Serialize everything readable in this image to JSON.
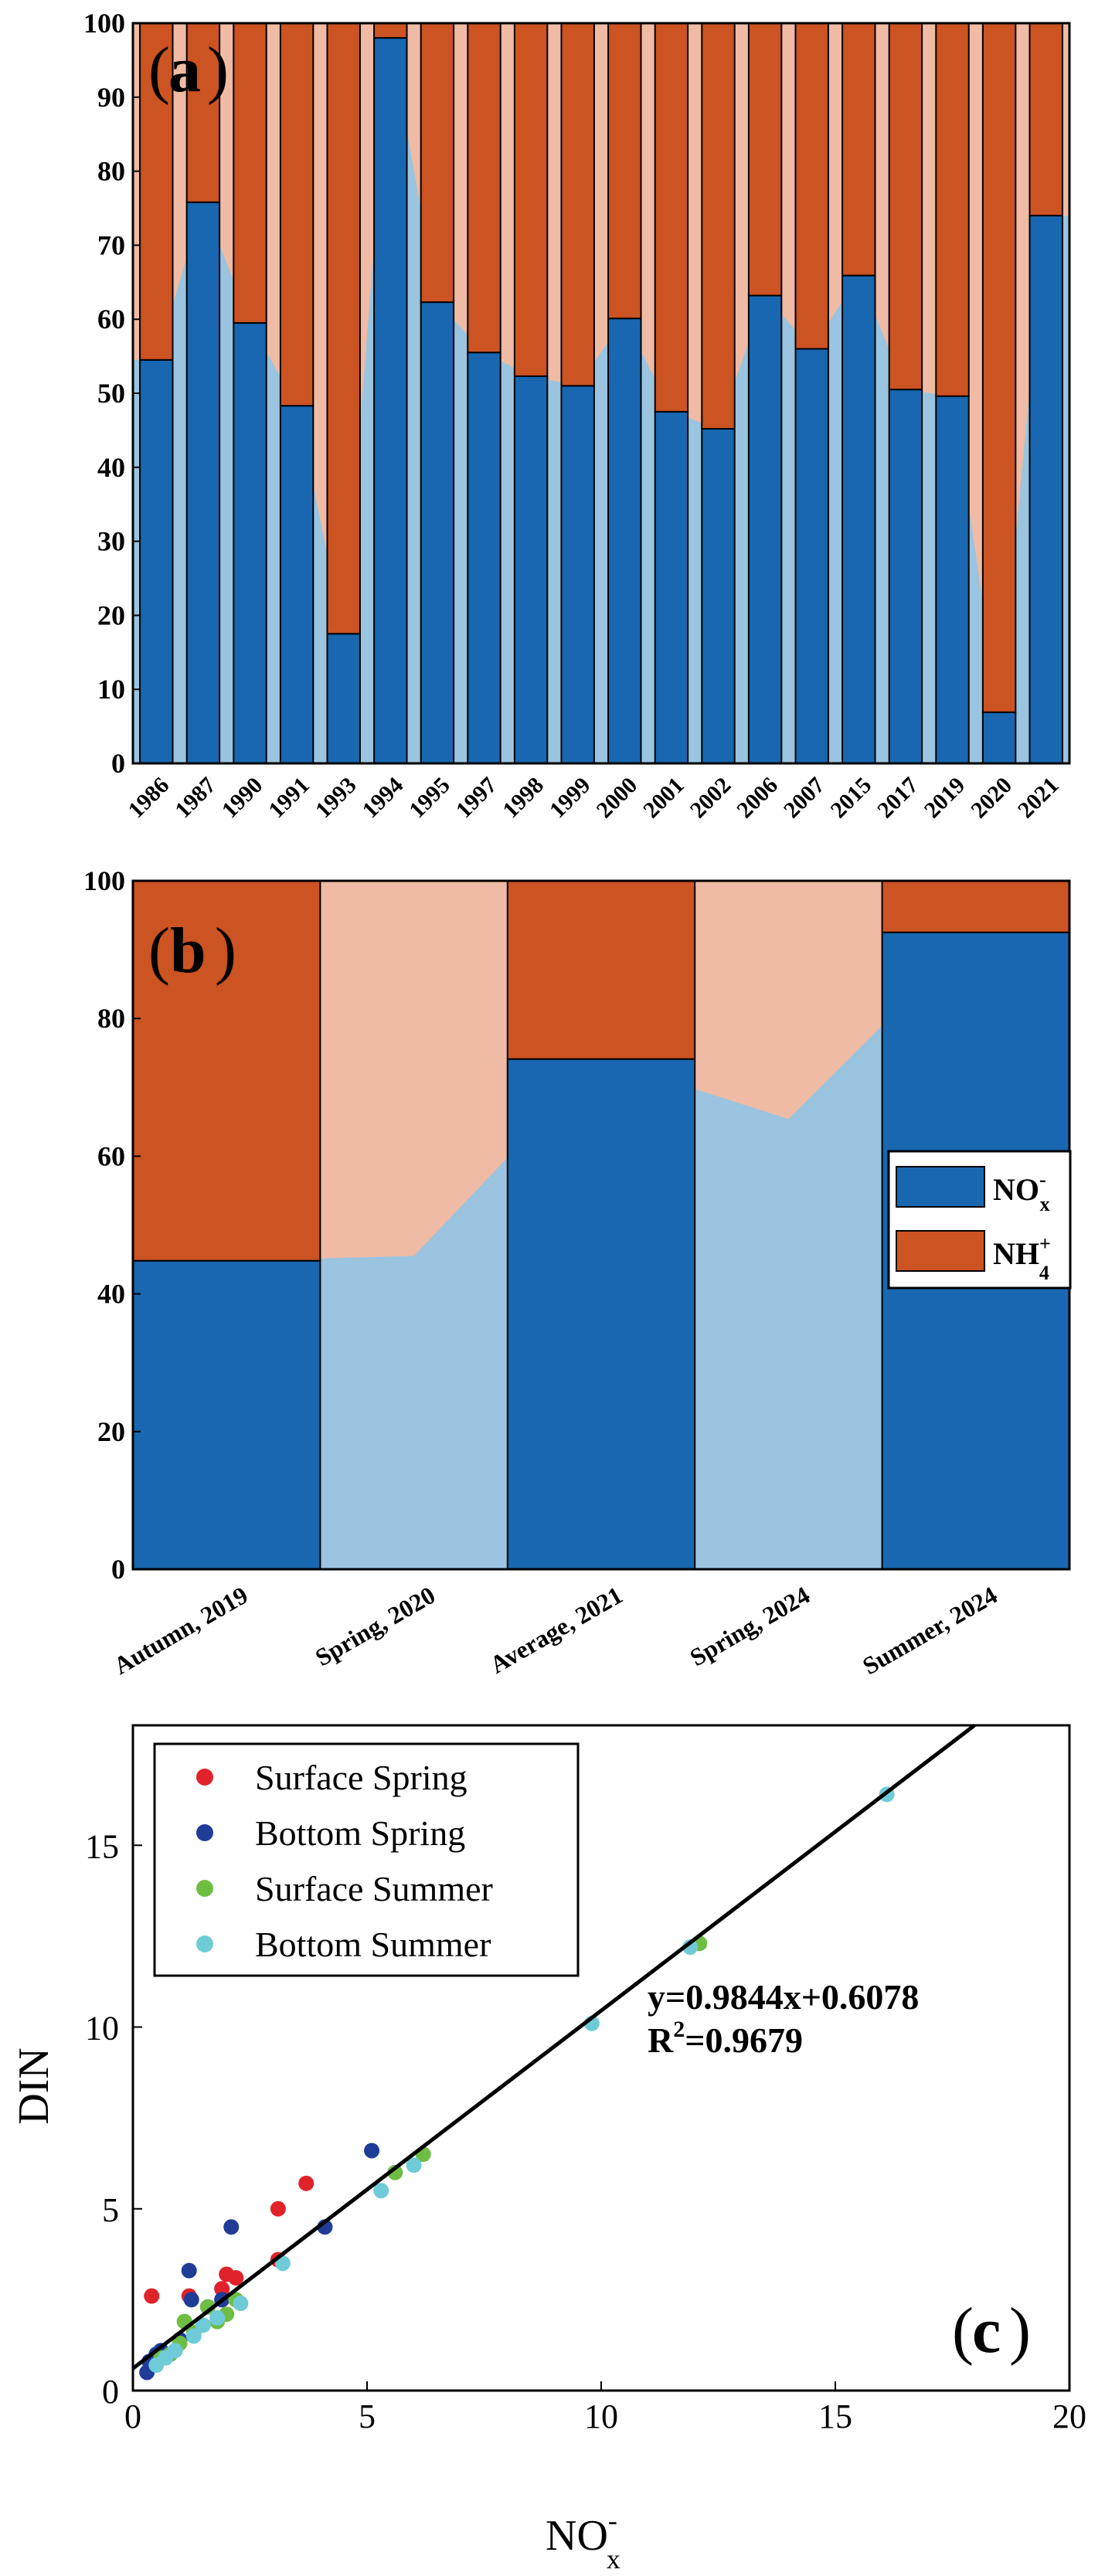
{
  "colors": {
    "nox_dark": "#1867b0",
    "nox_light": "#9ac4e0",
    "nh4_dark": "#cc5322",
    "nh4_light": "#efbba4",
    "surface_spring": "#e0222a",
    "bottom_spring": "#1f3c97",
    "surface_summer": "#6fbe44",
    "bottom_summer": "#6fcbd8",
    "fit_line": "#000000"
  },
  "chart_data": [
    {
      "panel": "a",
      "type": "bar",
      "stacked": true,
      "panel_label": "a",
      "categories": [
        "1986",
        "1987",
        "1990",
        "1991",
        "1993",
        "1994",
        "1995",
        "1997",
        "1998",
        "1999",
        "2000",
        "2001",
        "2002",
        "2006",
        "2007",
        "2015",
        "2017",
        "2019",
        "2020",
        "2021"
      ],
      "series": [
        {
          "name": "NOx-",
          "values": [
            54.5,
            75.8,
            59.5,
            48.3,
            17.5,
            98.0,
            62.3,
            55.5,
            52.3,
            51.0,
            60.1,
            47.5,
            45.2,
            63.2,
            56.0,
            65.9,
            50.5,
            49.6,
            6.9,
            74.0
          ]
        },
        {
          "name": "NH4+",
          "values": [
            45.5,
            24.2,
            40.5,
            51.7,
            82.5,
            2.0,
            37.7,
            44.5,
            47.7,
            49.0,
            39.9,
            52.5,
            54.8,
            36.8,
            44.0,
            34.1,
            49.5,
            50.4,
            93.1,
            26.0
          ]
        }
      ],
      "yticks": [
        "0",
        "10",
        "20",
        "30",
        "40",
        "50",
        "60",
        "70",
        "80",
        "90",
        "100"
      ],
      "ylim": [
        0,
        100
      ]
    },
    {
      "panel": "b",
      "type": "bar",
      "stacked": true,
      "panel_label": "b",
      "categories": [
        "Autumn, 2019",
        "Spring, 2020",
        "Average, 2021",
        "Spring, 2024",
        "Summer, 2024"
      ],
      "series": [
        {
          "name": "NOx-",
          "values": [
            44.8,
            45.5,
            74.1,
            65.4,
            92.5
          ]
        },
        {
          "name": "NH4+",
          "values": [
            55.2,
            54.5,
            25.9,
            34.6,
            7.5
          ]
        }
      ],
      "legend": [
        {
          "base": "NO",
          "sup": "-",
          "sub": "x"
        },
        {
          "base": "NH",
          "sup": "+",
          "sub": "4"
        }
      ],
      "yticks": [
        "0",
        "20",
        "40",
        "60",
        "80",
        "100"
      ],
      "ylim": [
        0,
        100
      ]
    },
    {
      "panel": "c",
      "type": "scatter",
      "panel_label": "c",
      "xlabel": {
        "base": "NO",
        "sup": "-",
        "sub": "x"
      },
      "ylabel": "DIN",
      "xlim": [
        0,
        20
      ],
      "ylim": [
        0,
        18.3
      ],
      "xticks": [
        "0",
        "5",
        "10",
        "15",
        "20"
      ],
      "yticks": [
        "0",
        "5",
        "10",
        "15"
      ],
      "fit": {
        "slope": 0.9844,
        "intercept": 0.6078
      },
      "equation": "y=0.9844x+0.6078",
      "r2_base": "R",
      "r2_sup": "2",
      "r2_value": "=0.9679",
      "series": [
        {
          "name": "Surface Spring",
          "points": [
            [
              0.4,
              2.6
            ],
            [
              1.2,
              2.6
            ],
            [
              1.9,
              2.8
            ],
            [
              2.0,
              3.2
            ],
            [
              2.2,
              3.1
            ],
            [
              3.1,
              3.6
            ],
            [
              3.1,
              5.0
            ],
            [
              3.7,
              5.7
            ]
          ]
        },
        {
          "name": "Bottom Spring",
          "points": [
            [
              0.3,
              0.5
            ],
            [
              0.35,
              0.8
            ],
            [
              0.5,
              1.0
            ],
            [
              0.6,
              1.1
            ],
            [
              1.0,
              1.4
            ],
            [
              1.2,
              3.3
            ],
            [
              1.25,
              2.5
            ],
            [
              1.6,
              2.3
            ],
            [
              1.9,
              2.5
            ],
            [
              2.1,
              4.5
            ],
            [
              4.1,
              4.5
            ],
            [
              5.1,
              6.6
            ]
          ]
        },
        {
          "name": "Surface Summer",
          "points": [
            [
              0.6,
              0.9
            ],
            [
              0.8,
              1.0
            ],
            [
              1.0,
              1.3
            ],
            [
              1.1,
              1.9
            ],
            [
              1.3,
              1.6
            ],
            [
              1.6,
              2.3
            ],
            [
              1.8,
              1.9
            ],
            [
              2.0,
              2.1
            ],
            [
              2.2,
              2.5
            ],
            [
              5.6,
              6.0
            ],
            [
              6.2,
              6.5
            ],
            [
              12.1,
              12.3
            ]
          ]
        },
        {
          "name": "Bottom Summer",
          "points": [
            [
              0.5,
              0.7
            ],
            [
              0.7,
              0.9
            ],
            [
              0.9,
              1.1
            ],
            [
              1.3,
              1.5
            ],
            [
              1.5,
              1.8
            ],
            [
              1.8,
              2.0
            ],
            [
              2.3,
              2.4
            ],
            [
              3.2,
              3.5
            ],
            [
              5.3,
              5.5
            ],
            [
              6.0,
              6.2
            ],
            [
              9.8,
              10.1
            ],
            [
              11.9,
              12.2
            ],
            [
              16.1,
              16.4
            ]
          ]
        }
      ]
    }
  ]
}
